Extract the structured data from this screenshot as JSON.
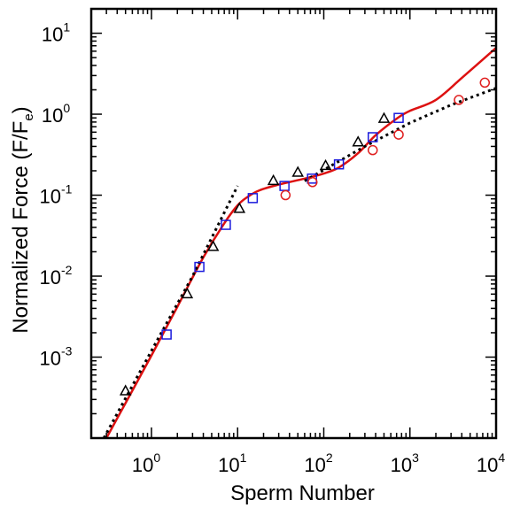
{
  "chart_data": {
    "type": "scatter",
    "title": "",
    "xlabel": "Sperm Number",
    "ylabel": "Normalized Force  (F/F",
    "ylabel_sub": "e",
    "ylabel_close": ")",
    "x_scale": "log",
    "y_scale": "log",
    "xlim": [
      0.2,
      10000
    ],
    "ylim": [
      0.0001,
      20
    ],
    "x_ticks": [
      {
        "base": "10",
        "exp": "0",
        "value": 1
      },
      {
        "base": "10",
        "exp": "1",
        "value": 10
      },
      {
        "base": "10",
        "exp": "2",
        "value": 100
      },
      {
        "base": "10",
        "exp": "3",
        "value": 1000
      },
      {
        "base": "10",
        "exp": "4",
        "value": 10000
      }
    ],
    "y_ticks": [
      {
        "base": "10",
        "exp": "-3",
        "value": 0.001
      },
      {
        "base": "10",
        "exp": "-2",
        "value": 0.01
      },
      {
        "base": "10",
        "exp": "-1",
        "value": 0.1
      },
      {
        "base": "10",
        "exp": "0",
        "value": 1
      },
      {
        "base": "10",
        "exp": "1",
        "value": 10
      }
    ],
    "grid": false,
    "legend": "none",
    "series": [
      {
        "marker": "triangle",
        "color": "#000000",
        "points": [
          [
            0.5,
            0.00038
          ],
          [
            2.6,
            0.006
          ],
          [
            5.2,
            0.023
          ],
          [
            10.5,
            0.068
          ],
          [
            26,
            0.15
          ],
          [
            50,
            0.19
          ],
          [
            105,
            0.23
          ],
          [
            250,
            0.45
          ],
          [
            500,
            0.88
          ]
        ]
      },
      {
        "marker": "square",
        "color": "#1a1adc",
        "points": [
          [
            1.5,
            0.0019
          ],
          [
            3.6,
            0.013
          ],
          [
            7.3,
            0.043
          ],
          [
            15,
            0.092
          ],
          [
            35,
            0.13
          ],
          [
            73,
            0.16
          ],
          [
            150,
            0.24
          ],
          [
            370,
            0.52
          ],
          [
            740,
            0.9
          ]
        ]
      },
      {
        "marker": "circle",
        "color": "#e02020",
        "points": [
          [
            36,
            0.1
          ],
          [
            74,
            0.145
          ],
          [
            370,
            0.36
          ],
          [
            740,
            0.56
          ],
          [
            3700,
            1.5
          ],
          [
            7400,
            2.45
          ]
        ]
      },
      {
        "style": "solid-line",
        "color": "#dd1111",
        "points": [
          [
            0.3,
            0.0001
          ],
          [
            0.5,
            0.00027
          ],
          [
            1,
            0.00105
          ],
          [
            2,
            0.0042
          ],
          [
            4,
            0.017
          ],
          [
            7,
            0.045
          ],
          [
            10,
            0.075
          ],
          [
            13,
            0.095
          ],
          [
            18,
            0.115
          ],
          [
            30,
            0.135
          ],
          [
            60,
            0.16
          ],
          [
            100,
            0.185
          ],
          [
            150,
            0.22
          ],
          [
            250,
            0.33
          ],
          [
            400,
            0.55
          ],
          [
            700,
            0.88
          ],
          [
            1000,
            1.1
          ],
          [
            2000,
            1.5
          ],
          [
            4000,
            2.8
          ],
          [
            10000,
            6.6
          ]
        ]
      },
      {
        "style": "dotted-line",
        "color": "#000000",
        "points": [
          [
            0.28,
            0.0001
          ],
          [
            1,
            0.0012
          ],
          [
            3,
            0.01
          ],
          [
            10,
            0.13
          ]
        ]
      },
      {
        "style": "dotted-line",
        "color": "#000000",
        "points": [
          [
            60,
            0.15
          ],
          [
            300,
            0.4
          ],
          [
            1000,
            0.78
          ],
          [
            3000,
            1.3
          ],
          [
            10000,
            2.1
          ]
        ]
      }
    ]
  }
}
